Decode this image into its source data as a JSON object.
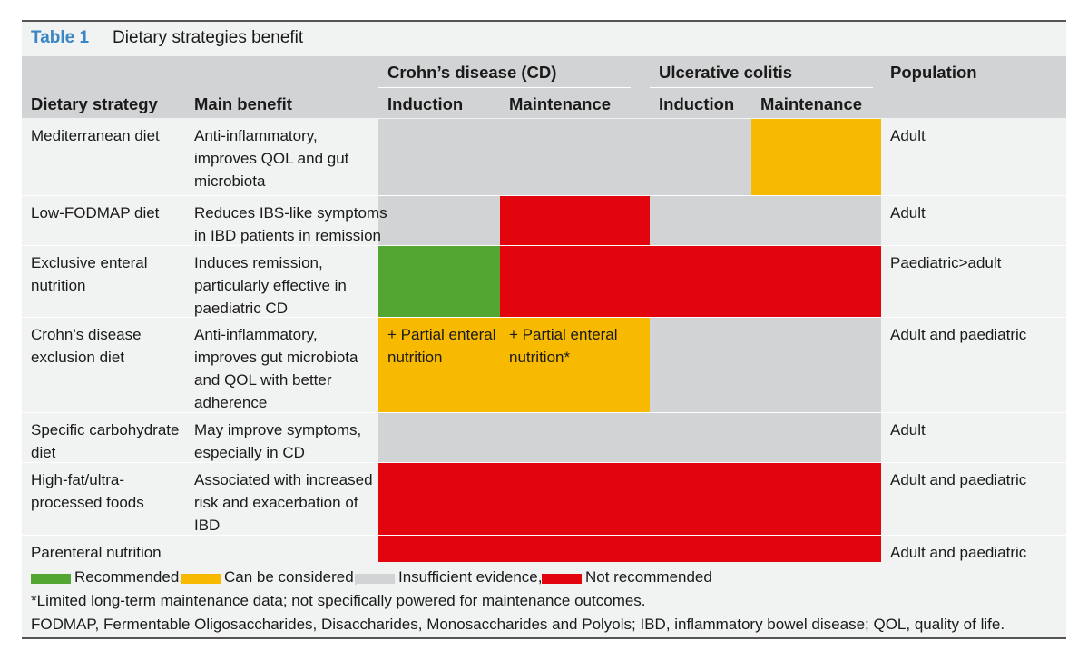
{
  "caption": {
    "number": "Table 1",
    "title": "Dietary strategies benefit"
  },
  "header": {
    "groups": {
      "cd": "Crohn’s disease (CD)",
      "uc": "Ulcerative colitis",
      "population": "Population"
    },
    "columns": {
      "strategy": "Dietary strategy",
      "benefit": "Main benefit",
      "cd_induction": "Induction",
      "cd_maintenance": "Maintenance",
      "uc_induction": "Induction",
      "uc_maintenance": "Maintenance"
    }
  },
  "rows": [
    {
      "strategy": [
        "Mediterranean diet"
      ],
      "benefit": [
        "Anti-inflammatory,",
        "improves QOL and gut",
        "microbiota"
      ],
      "cd_induction": "insufficient",
      "cd_maintenance": "insufficient",
      "uc_induction": "insufficient",
      "uc_maintenance": "consider",
      "population": "Adult"
    },
    {
      "strategy": [
        "Low-FODMAP diet"
      ],
      "benefit": [
        "Reduces IBS-like symptoms",
        "in IBD patients in remission"
      ],
      "cd_induction": "insufficient",
      "cd_maintenance": "not_recommended",
      "uc_induction": "insufficient",
      "uc_maintenance": "insufficient",
      "population": "Adult"
    },
    {
      "strategy": [
        "Exclusive enteral",
        "nutrition"
      ],
      "benefit": [
        "Induces remission,",
        "particularly effective in",
        "paediatric CD"
      ],
      "cd_induction": "recommended",
      "cd_maintenance": "not_recommended",
      "uc_induction": "not_recommended",
      "uc_maintenance": "not_recommended",
      "population": "Paediatric>adult"
    },
    {
      "strategy": [
        "Crohn’s disease",
        "exclusion diet"
      ],
      "benefit": [
        "Anti-inflammatory,",
        "improves gut microbiota",
        "and QOL with better",
        "adherence"
      ],
      "cd_induction": "consider",
      "cd_maintenance": "consider",
      "uc_induction": "insufficient",
      "uc_maintenance": "insufficient",
      "cd_induction_note": [
        "+ Partial enteral",
        "nutrition"
      ],
      "cd_maintenance_note": [
        "+ Partial enteral",
        "nutrition*"
      ],
      "population": "Adult and paediatric"
    },
    {
      "strategy": [
        "Specific carbohydrate",
        "diet"
      ],
      "benefit": [
        "May improve symptoms,",
        "especially in CD"
      ],
      "cd_induction": "insufficient",
      "cd_maintenance": "insufficient",
      "uc_induction": "insufficient",
      "uc_maintenance": "insufficient",
      "population": "Adult"
    },
    {
      "strategy": [
        "High-fat/ultra-",
        "processed foods"
      ],
      "benefit": [
        "Associated with increased",
        "risk and exacerbation of",
        "IBD"
      ],
      "cd_induction": "not_recommended",
      "cd_maintenance": "not_recommended",
      "uc_induction": "not_recommended",
      "uc_maintenance": "not_recommended",
      "population": "Adult and paediatric"
    },
    {
      "strategy": [
        "Parenteral nutrition"
      ],
      "benefit": [],
      "cd_induction": "not_recommended",
      "cd_maintenance": "not_recommended",
      "uc_induction": "not_recommended",
      "uc_maintenance": "not_recommended",
      "population": "Adult and paediatric"
    }
  ],
  "legend": [
    {
      "key": "recommended",
      "label": "Recommended,",
      "color": "#54a632"
    },
    {
      "key": "consider",
      "label": "Can be considered,",
      "color": "#f7ba00"
    },
    {
      "key": "insufficient",
      "label": "Insufficient evidence,",
      "color": "#d2d3d4"
    },
    {
      "key": "not_recommended",
      "label": "Not recommended",
      "color": "#e3050d"
    }
  ],
  "footnotes": {
    "asterisk": "*Limited long-term maintenance data; not specifically powered for maintenance outcomes.",
    "abbreviations": "FODMAP, Fermentable Oligosaccharides, Disaccharides, Monosaccharides and Polyols; IBD, inflammatory bowel disease; QOL, quality of life."
  },
  "colors": {
    "caption_number": "#3a85c4",
    "header_bg": "#d2d3d4",
    "body_bg": "#f1f2f2",
    "rule": "#555555"
  }
}
